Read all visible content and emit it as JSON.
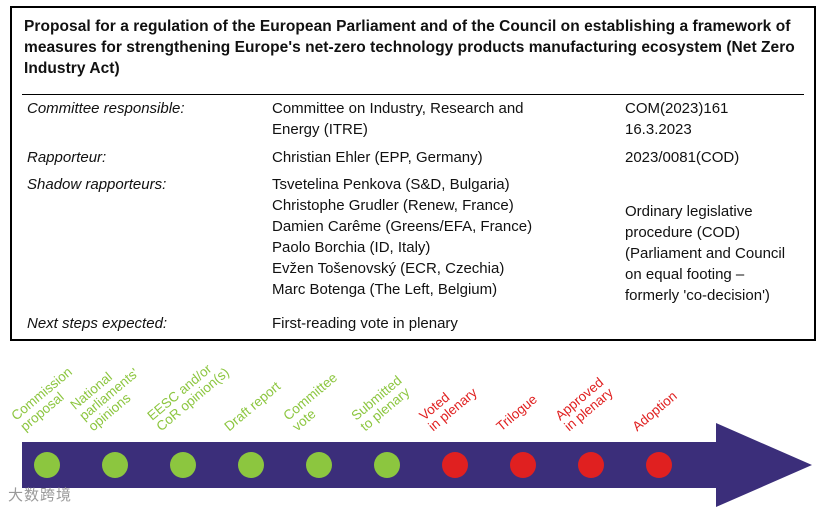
{
  "title": "Proposal for a regulation of the European Parliament and of the Council on establishing a framework of measures for strengthening Europe's net-zero technology products manufacturing ecosystem (Net Zero Industry Act)",
  "rows": {
    "committee_label": "Committee responsible:",
    "committee_value": "Committee on Industry, Research and\nEnergy (ITRE)",
    "com_ref": "COM(2023)161\n16.3.2023",
    "rapporteur_label": "Rapporteur:",
    "rapporteur_value": "Christian Ehler (EPP, Germany)",
    "procedure_ref": "2023/0081(COD)",
    "shadow_label": "Shadow rapporteurs:",
    "shadow_value": "Tsvetelina Penkova (S&D, Bulgaria)\nChristophe Grudler (Renew, France)\nDamien Carême (Greens/EFA, France)\nPaolo Borchia (ID, Italy)\nEvžen Tošenovský (ECR, Czechia)\nMarc Botenga (The Left, Belgium)",
    "procedure_desc": "Ordinary legislative\nprocedure (COD)\n(Parliament and Council\non equal footing –\nformerly 'co-decision')",
    "next_label": "Next steps expected:",
    "next_value": "First-reading vote in plenary"
  },
  "stages": [
    {
      "label": "Commission\nproposal",
      "status": "done"
    },
    {
      "label": "National\nparliaments'\nopinions",
      "status": "done"
    },
    {
      "label": "EESC and/or\nCoR opinion(s)",
      "status": "done"
    },
    {
      "label": "Draft report",
      "status": "done"
    },
    {
      "label": "Committee\nvote",
      "status": "done"
    },
    {
      "label": "Submitted\nto plenary",
      "status": "done"
    },
    {
      "label": "Voted\nin plenary",
      "status": "pending"
    },
    {
      "label": "Trilogue",
      "status": "pending"
    },
    {
      "label": "Approved\nin plenary",
      "status": "pending"
    },
    {
      "label": "Adoption",
      "status": "pending"
    }
  ],
  "colors": {
    "done": "#8cc63f",
    "pending": "#e02020",
    "arrow": "#3b2e7a"
  },
  "watermark": "大数跨境"
}
